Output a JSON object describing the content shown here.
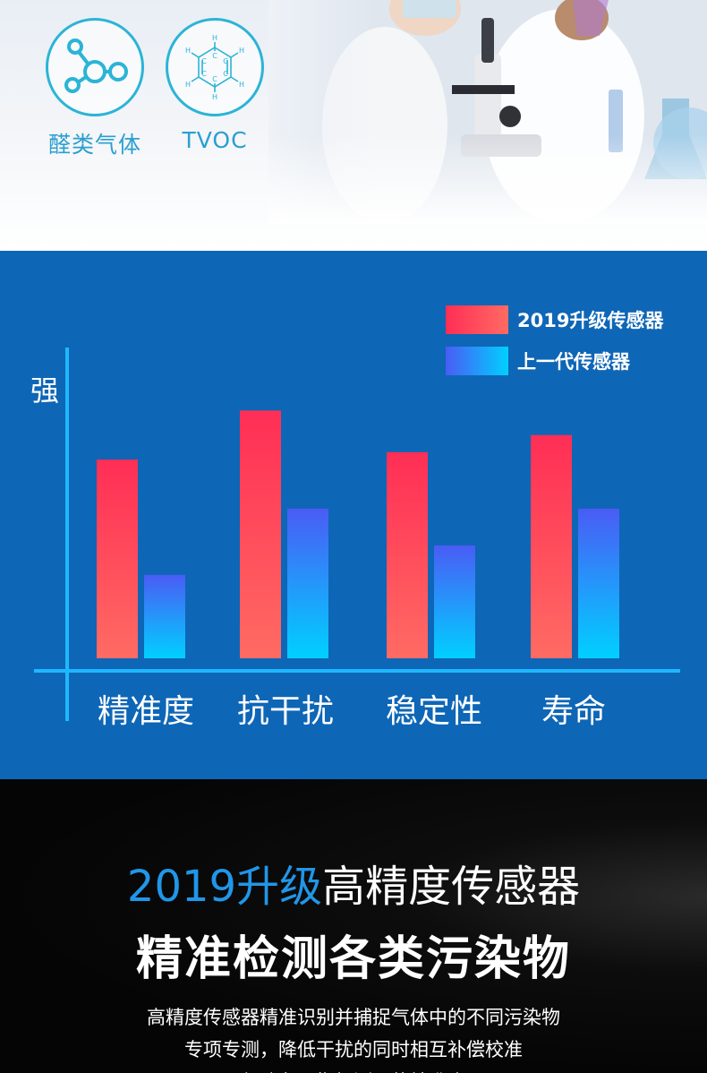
{
  "features": [
    {
      "label": "醛类气体",
      "icon": "molecule-icon"
    },
    {
      "label": "TVOC",
      "icon": "benzene-ring-icon"
    }
  ],
  "colors": {
    "accent": "#2196e8",
    "chart_bg": "#0e66b6",
    "new_sensor_top": "#ff2e55",
    "new_sensor_bottom": "#ff6b63",
    "old_sensor_top": "#4a5cf5",
    "old_sensor_bottom": "#00d0ff",
    "axis": "#1fb8ff"
  },
  "chart_data": {
    "type": "bar",
    "ylabel": "强",
    "categories": [
      "精准度",
      "抗干扰",
      "稳定性",
      "寿命"
    ],
    "series": [
      {
        "name": "2019升级传感器",
        "values": [
          81,
          101,
          84,
          91
        ]
      },
      {
        "name": "上一代传感器",
        "values": [
          34,
          61,
          46,
          61
        ]
      }
    ],
    "ylim": [
      0,
      115
    ],
    "grid": false,
    "legend": "top-right",
    "y_tick_labels": false
  },
  "bottom": {
    "headline_accent": "2019升级",
    "headline_rest": "高精度传感器",
    "subheadline": "精准检测各类污染物",
    "desc_lines": [
      "高精度传感器精准识别并捕捉气体中的不同污染物",
      "专项专测，降低干扰的同时相互补偿校准",
      "保障各项指标测量的精准度"
    ]
  }
}
